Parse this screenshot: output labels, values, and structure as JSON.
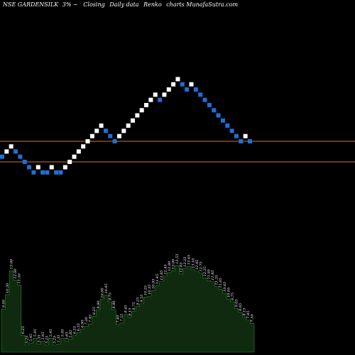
{
  "header": {
    "symbol": "NSE GARDENSILK",
    "box": "3% ~",
    "basis": "Closing",
    "timeframe": "Daily data",
    "chart_kind": "Renko",
    "site": "charts MunafaSutra.com"
  },
  "colors": {
    "background": "#000000",
    "up_brick": "#ffffff",
    "down_brick": "#1f6fd6",
    "reference_line": "#c8782d",
    "volume_fill": "#0f2a0f",
    "volume_edge": "#2a8a2a",
    "label_text": "#ffffff"
  },
  "chart_data": {
    "type": "renko",
    "box_size_percent": 3,
    "bricks": [
      {
        "dir": "down",
        "price": 7.91
      },
      {
        "dir": "up",
        "price": 8.15
      },
      {
        "dir": "up",
        "price": 8.39
      },
      {
        "dir": "down",
        "price": 8.15
      },
      {
        "dir": "down",
        "price": 7.91
      },
      {
        "dir": "down",
        "price": 7.68
      },
      {
        "dir": "down",
        "price": 7.45
      },
      {
        "dir": "down",
        "price": 7.23
      },
      {
        "dir": "up",
        "price": 7.45
      },
      {
        "dir": "down",
        "price": 7.23
      },
      {
        "dir": "down",
        "price": 7.23
      },
      {
        "dir": "up",
        "price": 7.45
      },
      {
        "dir": "down",
        "price": 7.23
      },
      {
        "dir": "down",
        "price": 7.23
      },
      {
        "dir": "up",
        "price": 7.45
      },
      {
        "dir": "up",
        "price": 7.68
      },
      {
        "dir": "up",
        "price": 7.91
      },
      {
        "dir": "up",
        "price": 8.15
      },
      {
        "dir": "up",
        "price": 8.39
      },
      {
        "dir": "up",
        "price": 8.64
      },
      {
        "dir": "up",
        "price": 8.9
      },
      {
        "dir": "up",
        "price": 9.17
      },
      {
        "dir": "up",
        "price": 9.45
      },
      {
        "dir": "down",
        "price": 9.17
      },
      {
        "dir": "down",
        "price": 8.9
      },
      {
        "dir": "down",
        "price": 8.64
      },
      {
        "dir": "up",
        "price": 8.9
      },
      {
        "dir": "up",
        "price": 9.17
      },
      {
        "dir": "up",
        "price": 9.45
      },
      {
        "dir": "up",
        "price": 9.73
      },
      {
        "dir": "up",
        "price": 10.02
      },
      {
        "dir": "up",
        "price": 10.32
      },
      {
        "dir": "up",
        "price": 10.63
      },
      {
        "dir": "up",
        "price": 10.95
      },
      {
        "dir": "up",
        "price": 11.28
      },
      {
        "dir": "down",
        "price": 10.95
      },
      {
        "dir": "up",
        "price": 11.28
      },
      {
        "dir": "up",
        "price": 11.62
      },
      {
        "dir": "up",
        "price": 11.97
      },
      {
        "dir": "up",
        "price": 12.33
      },
      {
        "dir": "down",
        "price": 11.97
      },
      {
        "dir": "down",
        "price": 11.62
      },
      {
        "dir": "up",
        "price": 11.97
      },
      {
        "dir": "down",
        "price": 11.62
      },
      {
        "dir": "down",
        "price": 11.28
      },
      {
        "dir": "down",
        "price": 10.95
      },
      {
        "dir": "down",
        "price": 10.63
      },
      {
        "dir": "down",
        "price": 10.32
      },
      {
        "dir": "down",
        "price": 10.02
      },
      {
        "dir": "down",
        "price": 9.73
      },
      {
        "dir": "down",
        "price": 9.45
      },
      {
        "dir": "down",
        "price": 9.17
      },
      {
        "dir": "down",
        "price": 8.9
      },
      {
        "dir": "down",
        "price": 8.64
      },
      {
        "dir": "up",
        "price": 8.9
      },
      {
        "dir": "down",
        "price": 8.64
      }
    ],
    "reference_lines": [
      8.64,
      7.68
    ],
    "volume_labels": [
      "9.00",
      "10.50",
      "13.00",
      "12.00",
      "11.50",
      "6.25",
      "5.25",
      "5.45",
      "5.95",
      "5.35",
      "5.65",
      "5.25",
      "5.95",
      "5.25",
      "5.35",
      "5.95",
      "5.65",
      "5.85",
      "6.25",
      "6.55",
      "6.90",
      "7.20",
      "7.45",
      "8.25",
      "8.90",
      "10.00",
      "10.45",
      "9.75",
      "8.90",
      "7.40",
      "7.55",
      "8.45",
      "8.15",
      "8.75",
      "9.25",
      "9.55",
      "10.25",
      "10.35",
      "10.95",
      "11.45",
      "11.85",
      "12.45",
      "12.80",
      "13.00",
      "13.55",
      "12.65",
      "13.25",
      "13.45",
      "13.10",
      "12.95",
      "12.75",
      "12.25",
      "11.95",
      "11.85",
      "11.35",
      "11.05",
      "10.65",
      "10.05",
      "9.75",
      "9.05",
      "8.65",
      "8.15",
      "7.85",
      "7.50"
    ]
  }
}
